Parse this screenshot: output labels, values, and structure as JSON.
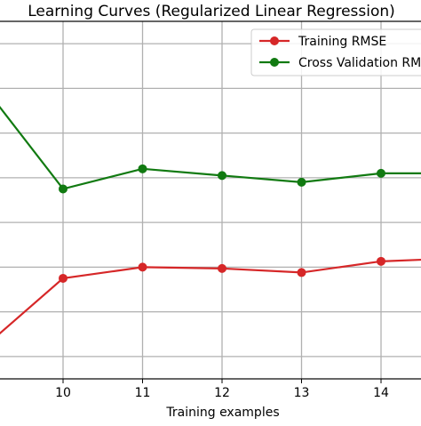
{
  "chart_data": {
    "type": "line",
    "title": "Learning Curves (Regularized Linear Regression)",
    "xlabel": "Training examples",
    "ylabel": "",
    "x": [
      9,
      10,
      11,
      12,
      13,
      14,
      15
    ],
    "x_ticks": [
      "10",
      "11",
      "12",
      "13",
      "14"
    ],
    "xlim": [
      9,
      14.5
    ],
    "ylim": [
      0,
      8
    ],
    "y_gridlines": [
      0.5,
      1.5,
      2.5,
      3.5,
      4.5,
      5.5,
      6.5,
      7.5
    ],
    "grid": true,
    "legend_position": "top-right",
    "series": [
      {
        "name": "Training RMSE",
        "color": "#d62728",
        "values": [
          0.7,
          2.25,
          2.5,
          2.47,
          2.38,
          2.63,
          2.7
        ]
      },
      {
        "name": "Cross Validation RMSE",
        "color": "#117a11",
        "values": [
          6.55,
          4.25,
          4.7,
          4.55,
          4.4,
          4.6,
          4.6
        ]
      }
    ]
  }
}
